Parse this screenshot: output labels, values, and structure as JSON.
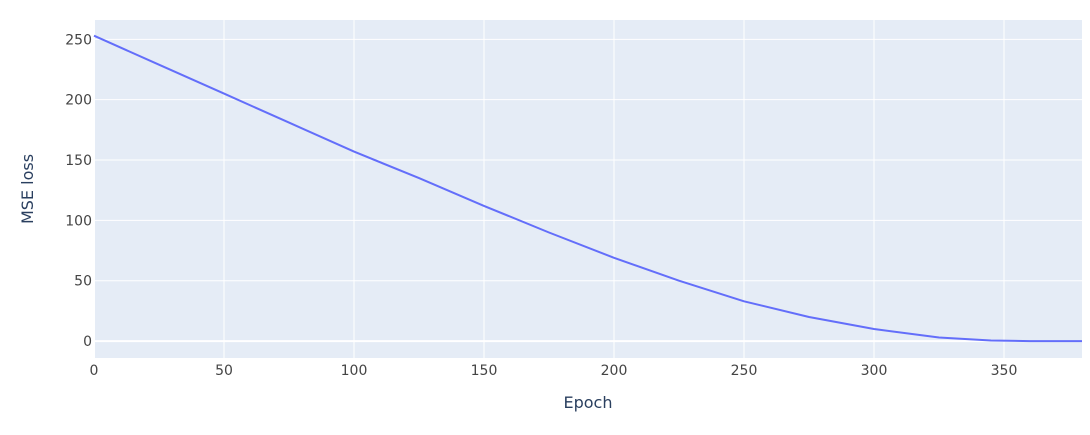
{
  "chart_data": {
    "type": "line",
    "title": "",
    "xlabel": "Epoch",
    "ylabel": "MSE loss",
    "xlim": [
      0,
      380
    ],
    "ylim": [
      -14,
      266
    ],
    "x_ticks": [
      0,
      50,
      100,
      150,
      200,
      250,
      300,
      350
    ],
    "y_ticks": [
      0,
      50,
      100,
      150,
      200,
      250
    ],
    "grid": true,
    "legend": "none",
    "colors": {
      "plot_background": "#e5ecf6",
      "grid": "#ffffff",
      "line": "#636efa",
      "tick_text": "#444444",
      "title_text": "#2a3f5f"
    },
    "series": [
      {
        "x": [
          0,
          25,
          50,
          75,
          100,
          125,
          150,
          175,
          200,
          225,
          250,
          275,
          300,
          325,
          345,
          360,
          380
        ],
        "y": [
          253,
          229,
          205,
          181,
          157,
          135,
          112,
          90,
          69,
          50,
          33,
          20,
          10,
          3,
          0.5,
          0,
          0
        ]
      }
    ]
  }
}
